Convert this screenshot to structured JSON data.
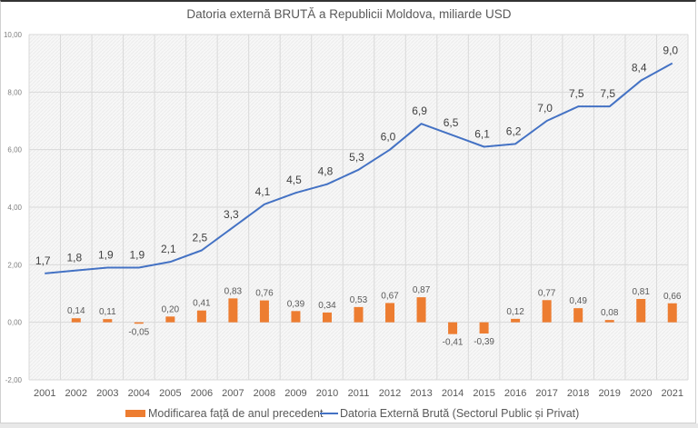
{
  "chart_data": {
    "type": "bar+line",
    "title": "Datoria externă BRUTĂ a Republicii Moldova, miliarde USD",
    "xlabel": "",
    "ylabel": "",
    "ylim": [
      -2,
      10
    ],
    "yticks": [
      -2,
      0,
      2,
      4,
      6,
      8,
      10
    ],
    "ytick_labels": [
      "-2,00",
      "0,00",
      "2,00",
      "4,00",
      "6,00",
      "8,00",
      "10,00"
    ],
    "grid": true,
    "legend_position": "bottom",
    "categories": [
      "2001",
      "2002",
      "2003",
      "2004",
      "2005",
      "2006",
      "2007",
      "2008",
      "2009",
      "2010",
      "2011",
      "2012",
      "2013",
      "2014",
      "2015",
      "2016",
      "2017",
      "2018",
      "2019",
      "2020",
      "2021"
    ],
    "series": [
      {
        "name": "Modificarea față de anul precedent",
        "type": "bar",
        "color": "#ED7D31",
        "values": [
          null,
          0.14,
          0.11,
          -0.05,
          0.2,
          0.41,
          0.83,
          0.76,
          0.39,
          0.34,
          0.53,
          0.67,
          0.87,
          -0.41,
          -0.39,
          0.12,
          0.77,
          0.49,
          0.08,
          0.81,
          0.66
        ],
        "labels": [
          "",
          "0,14",
          "0,11",
          "-0,05",
          "0,20",
          "0,41",
          "0,83",
          "0,76",
          "0,39",
          "0,34",
          "0,53",
          "0,67",
          "0,87",
          "-0,41",
          "-0,39",
          "0,12",
          "0,77",
          "0,49",
          "0,08",
          "0,81",
          "0,66"
        ]
      },
      {
        "name": "Datoria Externă Brută (Sectorul Public și Privat)",
        "type": "line",
        "color": "#4472C4",
        "values": [
          1.7,
          1.8,
          1.9,
          1.9,
          2.1,
          2.5,
          3.3,
          4.1,
          4.5,
          4.8,
          5.3,
          6.0,
          6.9,
          6.5,
          6.1,
          6.2,
          7.0,
          7.5,
          7.5,
          8.4,
          9.0
        ],
        "labels": [
          "1,7",
          "1,8",
          "1,9",
          "1,9",
          "2,1",
          "2,5",
          "3,3",
          "4,1",
          "4,5",
          "4,8",
          "5,3",
          "6,0",
          "6,9",
          "6,5",
          "6,1",
          "6,2",
          "7,0",
          "7,5",
          "7,5",
          "8,4",
          "9,0"
        ]
      }
    ]
  }
}
